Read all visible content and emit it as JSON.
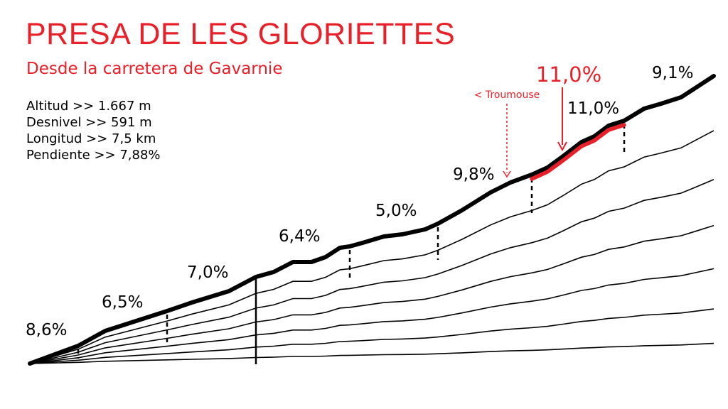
{
  "title": "PRESA DE LES GLORIETTES",
  "subtitle": "Desde la carretera de Gavarnie",
  "stats": [
    "Altitud >> 1.667 m",
    "Desnivel >> 591 m",
    "Longitud >> 7,5 km",
    "Pendiente >> 7,88%"
  ],
  "segments": [
    {
      "label": "8,6%"
    },
    {
      "label": "6,5%"
    },
    {
      "label": "7,0%"
    },
    {
      "label": "6,4%"
    },
    {
      "label": "5,0%"
    },
    {
      "label": "9,8%"
    },
    {
      "label": "11,0%"
    },
    {
      "label": "11,0%"
    },
    {
      "label": "9,1%"
    }
  ],
  "annotation": {
    "text": "< Troumouse"
  },
  "colors": {
    "accent": "#e8202a",
    "ink": "#000000"
  }
}
